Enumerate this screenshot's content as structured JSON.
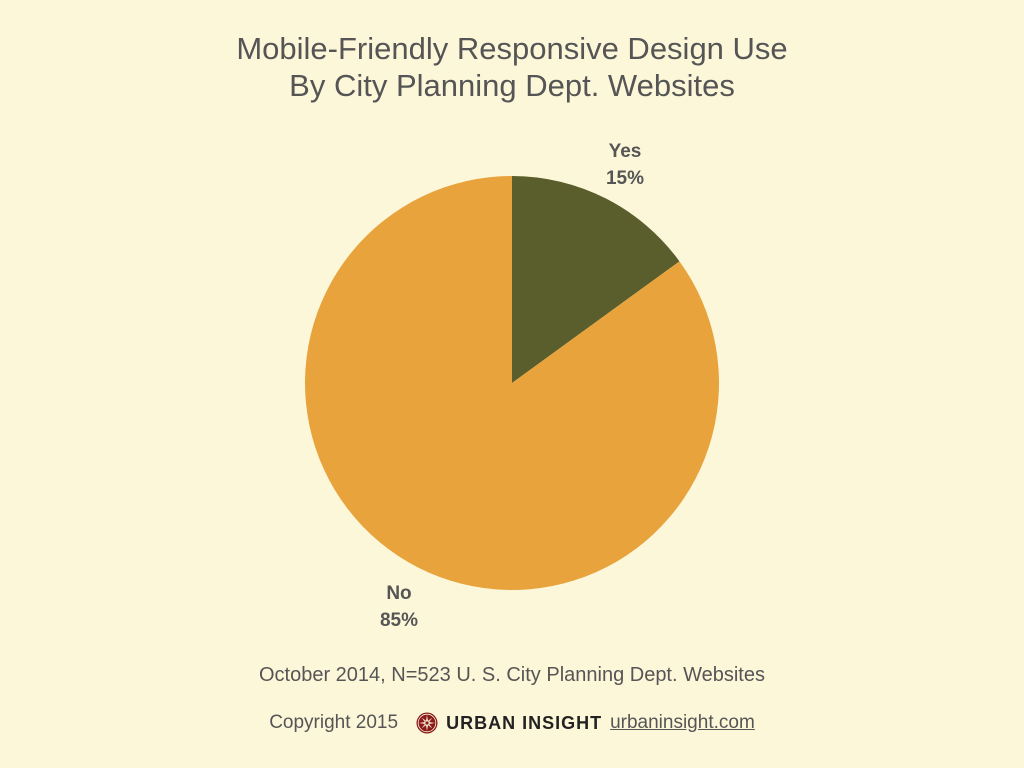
{
  "chart_data": {
    "type": "pie",
    "title_lines": [
      "Mobile-Friendly Responsive Design Use",
      "By City Planning Dept. Websites"
    ],
    "slices": [
      {
        "name": "Yes",
        "label": "15%",
        "value": 15,
        "color": "#5a5d2c"
      },
      {
        "name": "No",
        "label": "85%",
        "value": 85,
        "color": "#e8a33d"
      }
    ],
    "start_angle_deg": 0,
    "direction": "clockwise"
  },
  "source_note": "October 2014, N=523 U. S. City Planning Dept. Websites",
  "footer": {
    "copyright": "Copyright 2015",
    "brand": "URBAN INSIGHT",
    "site": "urbaninsight.com",
    "logo_icon": "compass-rose-icon"
  },
  "colors": {
    "background": "#fdf7da",
    "logo_red": "#8b1a1a"
  }
}
